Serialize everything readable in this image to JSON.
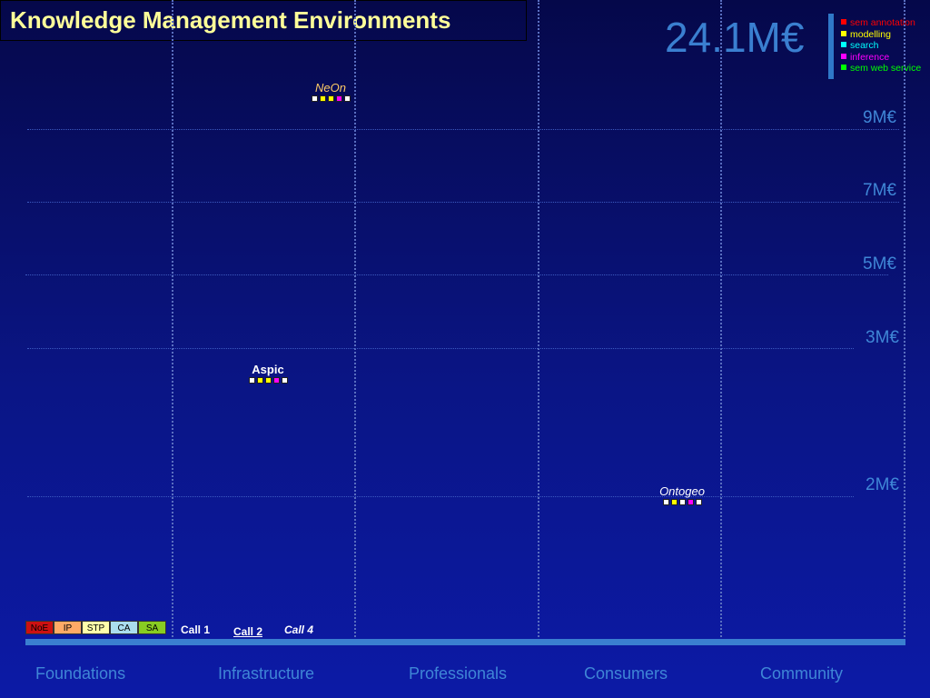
{
  "title": "Knowledge Management Environments",
  "total": "24.1M€",
  "legend": [
    {
      "label": "sem annotation",
      "color": "#ff0000"
    },
    {
      "label": "modelling",
      "color": "#ffff00"
    },
    {
      "label": "search",
      "color": "#00ffff"
    },
    {
      "label": "inference",
      "color": "#ff00ff"
    },
    {
      "label": "sem web service",
      "color": "#00ff00"
    }
  ],
  "levels": [
    "9M€",
    "7M€",
    "5M€",
    "3M€",
    "2M€"
  ],
  "projects": [
    {
      "name": "NeOn",
      "color": "#ffcc66",
      "italic": true,
      "bold": false,
      "squares": [
        "#ffffff",
        "#ffff00",
        "#ffff00",
        "#ff00ff",
        "#ffffff"
      ]
    },
    {
      "name": "Aspic",
      "color": "#ffffff",
      "italic": false,
      "bold": true,
      "squares": [
        "#ffffff",
        "#ffff00",
        "#ffff00",
        "#ff00ff",
        "#ffffff"
      ]
    },
    {
      "name": "Ontogeo",
      "color": "#ffffff",
      "italic": true,
      "bold": false,
      "squares": [
        "#ffffff",
        "#ffff00",
        "#ffffff",
        "#ff00ff",
        "#ffffff"
      ]
    }
  ],
  "key": [
    {
      "label": "NoE",
      "color": "#cc1111"
    },
    {
      "label": "IP",
      "color": "#ffaa66"
    },
    {
      "label": "STP",
      "color": "#ffffaa"
    },
    {
      "label": "CA",
      "color": "#aaddee"
    },
    {
      "label": "SA",
      "color": "#88cc22"
    }
  ],
  "calls": [
    "Call 1",
    "Call 2",
    "Call 4"
  ],
  "categories": [
    "Foundations",
    "Infrastructure",
    "Professionals",
    "Consumers",
    "Community"
  ]
}
